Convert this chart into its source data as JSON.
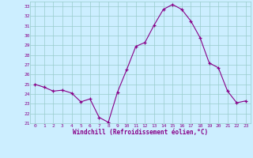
{
  "x": [
    0,
    1,
    2,
    3,
    4,
    5,
    6,
    7,
    8,
    9,
    10,
    11,
    12,
    13,
    14,
    15,
    16,
    17,
    18,
    19,
    20,
    21,
    22,
    23
  ],
  "y": [
    25.0,
    24.7,
    24.3,
    24.4,
    24.1,
    23.2,
    23.5,
    21.6,
    21.1,
    24.2,
    26.5,
    28.9,
    29.3,
    31.1,
    32.7,
    33.2,
    32.7,
    31.5,
    29.8,
    27.2,
    26.7,
    24.3,
    23.1,
    23.3
  ],
  "line_color": "#880088",
  "marker": "+",
  "bg_color": "#cceeff",
  "grid_color": "#99cccc",
  "xlabel": "Windchill (Refroidissement éolien,°C)",
  "xlabel_color": "#880088",
  "ylabel_ticks": [
    21,
    22,
    23,
    24,
    25,
    26,
    27,
    28,
    29,
    30,
    31,
    32,
    33
  ],
  "xticks": [
    0,
    1,
    2,
    3,
    4,
    5,
    6,
    7,
    8,
    9,
    10,
    11,
    12,
    13,
    14,
    15,
    16,
    17,
    18,
    19,
    20,
    21,
    22,
    23
  ],
  "ylim": [
    21,
    33
  ],
  "xlim": [
    -0.5,
    23.5
  ]
}
